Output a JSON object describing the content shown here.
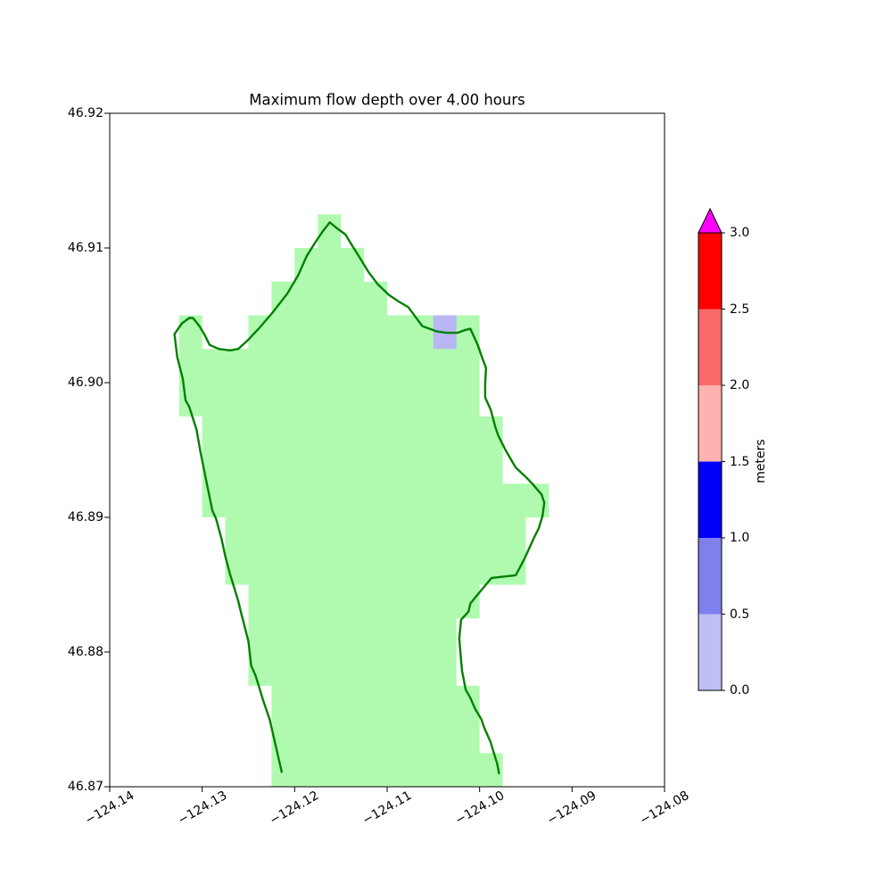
{
  "chart_data": {
    "type": "map",
    "title": "Maximum flow depth over 4.00 hours",
    "xlabel": "",
    "ylabel": "",
    "xlim": [
      -124.14,
      -124.08
    ],
    "ylim": [
      46.87,
      46.92
    ],
    "grid": false,
    "x_axis": {
      "ticks": [
        {
          "value": -124.14,
          "label": "−124.14"
        },
        {
          "value": -124.13,
          "label": "−124.13"
        },
        {
          "value": -124.12,
          "label": "−124.12"
        },
        {
          "value": -124.11,
          "label": "−124.11"
        },
        {
          "value": -124.1,
          "label": "−124.10"
        },
        {
          "value": -124.09,
          "label": "−124.09"
        },
        {
          "value": -124.08,
          "label": "−124.08"
        }
      ]
    },
    "y_axis": {
      "ticks": [
        {
          "value": 46.92,
          "label": "46.92"
        },
        {
          "value": 46.91,
          "label": "46.91"
        },
        {
          "value": 46.9,
          "label": "46.90"
        },
        {
          "value": 46.89,
          "label": "46.89"
        },
        {
          "value": 46.88,
          "label": "46.88"
        },
        {
          "value": 46.87,
          "label": "46.87"
        }
      ]
    },
    "land_region": {
      "description": "computational land area shown as light-green grid cells",
      "fill": "#b0fab0",
      "polygon_lonlat": [
        [
          -124.1175,
          46.9125
        ],
        [
          -124.115,
          46.9125
        ],
        [
          -124.115,
          46.91
        ],
        [
          -124.1125,
          46.91
        ],
        [
          -124.1125,
          46.9075
        ],
        [
          -124.11,
          46.9075
        ],
        [
          -124.11,
          46.905
        ],
        [
          -124.1,
          46.905
        ],
        [
          -124.1,
          46.8975
        ],
        [
          -124.0975,
          46.8975
        ],
        [
          -124.0975,
          46.8925
        ],
        [
          -124.0925,
          46.8925
        ],
        [
          -124.0925,
          46.89
        ],
        [
          -124.095,
          46.89
        ],
        [
          -124.095,
          46.885
        ],
        [
          -124.1,
          46.885
        ],
        [
          -124.1,
          46.8825
        ],
        [
          -124.1025,
          46.8825
        ],
        [
          -124.1025,
          46.8775
        ],
        [
          -124.1,
          46.8775
        ],
        [
          -124.1,
          46.8725
        ],
        [
          -124.0975,
          46.8725
        ],
        [
          -124.0975,
          46.87
        ],
        [
          -124.1225,
          46.87
        ],
        [
          -124.1225,
          46.8775
        ],
        [
          -124.125,
          46.8775
        ],
        [
          -124.125,
          46.885
        ],
        [
          -124.1275,
          46.885
        ],
        [
          -124.1275,
          46.89
        ],
        [
          -124.13,
          46.89
        ],
        [
          -124.13,
          46.8975
        ],
        [
          -124.1325,
          46.8975
        ],
        [
          -124.1325,
          46.905
        ],
        [
          -124.13,
          46.905
        ],
        [
          -124.13,
          46.9025
        ],
        [
          -124.125,
          46.9025
        ],
        [
          -124.125,
          46.905
        ],
        [
          -124.1225,
          46.905
        ],
        [
          -124.1225,
          46.9075
        ],
        [
          -124.12,
          46.9075
        ],
        [
          -124.12,
          46.91
        ],
        [
          -124.1175,
          46.91
        ]
      ]
    },
    "depth_cells": [
      {
        "lon_min": -124.105,
        "lon_max": -124.1025,
        "lat_min": 46.9025,
        "lat_max": 46.905,
        "depth_range_m": "0.0–0.5",
        "fill": "#b7b7f3"
      }
    ],
    "shoreline": {
      "color": "#028002",
      "points_lonlat": [
        [
          -124.1214,
          46.8711
        ],
        [
          -124.122,
          46.8729
        ],
        [
          -124.1227,
          46.875
        ],
        [
          -124.1234,
          46.8764
        ],
        [
          -124.1242,
          46.8782
        ],
        [
          -124.1247,
          46.879
        ],
        [
          -124.125,
          46.8808
        ],
        [
          -124.1259,
          46.8832
        ],
        [
          -124.1261,
          46.8838
        ],
        [
          -124.127,
          46.8858
        ],
        [
          -124.1275,
          46.8871
        ],
        [
          -124.1279,
          46.8884
        ],
        [
          -124.1285,
          46.8899
        ],
        [
          -124.1289,
          46.8905
        ],
        [
          -124.1295,
          46.8925
        ],
        [
          -124.1302,
          46.8949
        ],
        [
          -124.1306,
          46.8965
        ],
        [
          -124.1314,
          46.8982
        ],
        [
          -124.1318,
          46.8987
        ],
        [
          -124.1321,
          46.9003
        ],
        [
          -124.1327,
          46.9019
        ],
        [
          -124.133,
          46.9036
        ],
        [
          -124.1322,
          46.9044
        ],
        [
          -124.1314,
          46.9048
        ],
        [
          -124.131,
          46.9048
        ],
        [
          -124.1303,
          46.9042
        ],
        [
          -124.1297,
          46.9035
        ],
        [
          -124.1292,
          46.9028
        ],
        [
          -124.1282,
          46.9025
        ],
        [
          -124.127,
          46.9024
        ],
        [
          -124.1261,
          46.9025
        ],
        [
          -124.125,
          46.9032
        ],
        [
          -124.1239,
          46.904
        ],
        [
          -124.1224,
          46.9052
        ],
        [
          -124.1208,
          46.9066
        ],
        [
          -124.1196,
          46.908
        ],
        [
          -124.1187,
          46.9094
        ],
        [
          -124.1177,
          46.9105
        ],
        [
          -124.1169,
          46.9113
        ],
        [
          -124.1162,
          46.9119
        ],
        [
          -124.1153,
          46.9114
        ],
        [
          -124.1145,
          46.911
        ],
        [
          -124.1138,
          46.9102
        ],
        [
          -124.1128,
          46.9091
        ],
        [
          -124.112,
          46.9082
        ],
        [
          -124.111,
          46.9073
        ],
        [
          -124.1098,
          46.9065
        ],
        [
          -124.1087,
          46.906
        ],
        [
          -124.1077,
          46.9056
        ],
        [
          -124.1062,
          46.9042
        ],
        [
          -124.1046,
          46.9038
        ],
        [
          -124.1036,
          46.9037
        ],
        [
          -124.1024,
          46.9037
        ],
        [
          -124.1016,
          46.9039
        ],
        [
          -124.101,
          46.904
        ],
        [
          -124.1002,
          46.9028
        ],
        [
          -124.0997,
          46.9018
        ],
        [
          -124.0993,
          46.9011
        ],
        [
          -124.0994,
          46.8999
        ],
        [
          -124.0994,
          46.8989
        ],
        [
          -124.0988,
          46.898
        ],
        [
          -124.0983,
          46.8967
        ],
        [
          -124.098,
          46.8961
        ],
        [
          -124.0972,
          46.895
        ],
        [
          -124.0961,
          46.8937
        ],
        [
          -124.095,
          46.893
        ],
        [
          -124.0943,
          46.8925
        ],
        [
          -124.0933,
          46.8917
        ],
        [
          -124.093,
          46.8911
        ],
        [
          -124.0932,
          46.8901
        ],
        [
          -124.0936,
          46.8892
        ],
        [
          -124.0941,
          46.8885
        ],
        [
          -124.0951,
          46.887
        ],
        [
          -124.0957,
          46.8862
        ],
        [
          -124.0961,
          46.8857
        ],
        [
          -124.0974,
          46.8856
        ],
        [
          -124.0987,
          46.8855
        ],
        [
          -124.1003,
          46.8842
        ],
        [
          -124.101,
          46.8836
        ],
        [
          -124.1012,
          46.883
        ],
        [
          -124.102,
          46.8824
        ],
        [
          -124.1022,
          46.881
        ],
        [
          -124.102,
          46.8794
        ],
        [
          -124.1019,
          46.8786
        ],
        [
          -124.1015,
          46.8772
        ],
        [
          -124.101,
          46.8766
        ],
        [
          -124.1005,
          46.8758
        ],
        [
          -124.0998,
          46.875
        ],
        [
          -124.0995,
          46.8744
        ],
        [
          -124.0988,
          46.8733
        ],
        [
          -124.0985,
          46.8726
        ],
        [
          -124.0981,
          46.8717
        ],
        [
          -124.0979,
          46.871
        ]
      ]
    },
    "colorbar": {
      "label": "meters",
      "orientation": "vertical",
      "extend": "max",
      "levels": [
        0.0,
        0.5,
        1.0,
        1.5,
        2.0,
        2.5,
        3.0
      ],
      "tick_labels": [
        "0.0",
        "0.5",
        "1.0",
        "1.5",
        "2.0",
        "2.5",
        "3.0"
      ],
      "segment_colors": [
        "#bfbff4",
        "#7f7fee",
        "#0000fa",
        "#ffb2b2",
        "#fb6a6a",
        "#fe0000"
      ],
      "over_color": "#ff00ff"
    }
  }
}
